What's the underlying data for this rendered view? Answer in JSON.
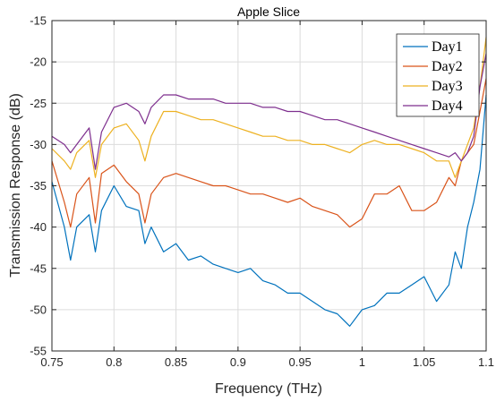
{
  "chart_data": {
    "type": "line",
    "title": "Apple Slice",
    "xlabel": "Frequency (THz)",
    "ylabel": "Transmission Response (dB)",
    "xlim": [
      0.75,
      1.1
    ],
    "ylim": [
      -55,
      -15
    ],
    "xticks": [
      0.75,
      0.8,
      0.85,
      0.9,
      0.95,
      1.0,
      1.05,
      1.1
    ],
    "xtick_labels": [
      "0.75",
      "0.8",
      "0.85",
      "0.9",
      "0.95",
      "1",
      "1.05",
      "1.1"
    ],
    "yticks": [
      -55,
      -50,
      -45,
      -40,
      -35,
      -30,
      -25,
      -20,
      -15
    ],
    "ytick_labels": [
      "-55",
      "-50",
      "-45",
      "-40",
      "-35",
      "-30",
      "-25",
      "-20",
      "-15"
    ],
    "grid": true,
    "legend_position": "top-right",
    "x": [
      0.75,
      0.76,
      0.765,
      0.77,
      0.78,
      0.785,
      0.79,
      0.8,
      0.81,
      0.82,
      0.825,
      0.83,
      0.84,
      0.85,
      0.86,
      0.87,
      0.88,
      0.89,
      0.9,
      0.91,
      0.92,
      0.93,
      0.94,
      0.95,
      0.96,
      0.97,
      0.98,
      0.99,
      1.0,
      1.01,
      1.02,
      1.03,
      1.04,
      1.05,
      1.06,
      1.07,
      1.075,
      1.08,
      1.085,
      1.09,
      1.095,
      1.1
    ],
    "series": [
      {
        "name": "Day1",
        "color": "#0072BD",
        "values": [
          -34.5,
          -40,
          -44,
          -40,
          -38.5,
          -43,
          -38,
          -35,
          -37.5,
          -38,
          -42,
          -40,
          -43,
          -42,
          -44,
          -43.5,
          -44.5,
          -45,
          -45.5,
          -45,
          -46.5,
          -47,
          -48,
          -48,
          -49,
          -50,
          -50.5,
          -52,
          -50,
          -49.5,
          -48,
          -48,
          -47,
          -46,
          -49,
          -47,
          -43,
          -45,
          -40,
          -37,
          -33,
          -24
        ]
      },
      {
        "name": "Day2",
        "color": "#D95319",
        "values": [
          -32,
          -37,
          -40,
          -36,
          -34,
          -39.5,
          -33.5,
          -32.5,
          -34.5,
          -36,
          -39.5,
          -36,
          -34,
          -33.5,
          -34,
          -34.5,
          -35,
          -35,
          -35.5,
          -36,
          -36,
          -36.5,
          -37,
          -36.5,
          -37.5,
          -38,
          -38.5,
          -40,
          -39,
          -36,
          -36,
          -35,
          -38,
          -38,
          -37,
          -34,
          -35,
          -32,
          -31,
          -30,
          -26,
          -22
        ]
      },
      {
        "name": "Day3",
        "color": "#EDB120",
        "values": [
          -30.5,
          -32,
          -33,
          -31,
          -29.5,
          -34,
          -30,
          -28,
          -27.5,
          -29.5,
          -32,
          -29,
          -26,
          -26,
          -26.5,
          -27,
          -27,
          -27.5,
          -28,
          -28.5,
          -29,
          -29,
          -29.5,
          -29.5,
          -30,
          -30,
          -30.5,
          -31,
          -30,
          -29.5,
          -30,
          -30,
          -30.5,
          -31,
          -32,
          -32,
          -34,
          -32,
          -30,
          -28,
          -23,
          -17
        ]
      },
      {
        "name": "Day4",
        "color": "#7E2F8E",
        "values": [
          -29,
          -30,
          -31,
          -30,
          -28,
          -33,
          -28.5,
          -25.5,
          -25,
          -26,
          -27.5,
          -25.5,
          -24,
          -24,
          -24.5,
          -24.5,
          -24.5,
          -25,
          -25,
          -25,
          -25.5,
          -25.5,
          -26,
          -26,
          -26.5,
          -27,
          -27,
          -27.5,
          -28,
          -28.5,
          -29,
          -29.5,
          -30,
          -30.5,
          -31,
          -31.5,
          -31,
          -32,
          -31,
          -29,
          -23,
          -19
        ]
      }
    ]
  }
}
